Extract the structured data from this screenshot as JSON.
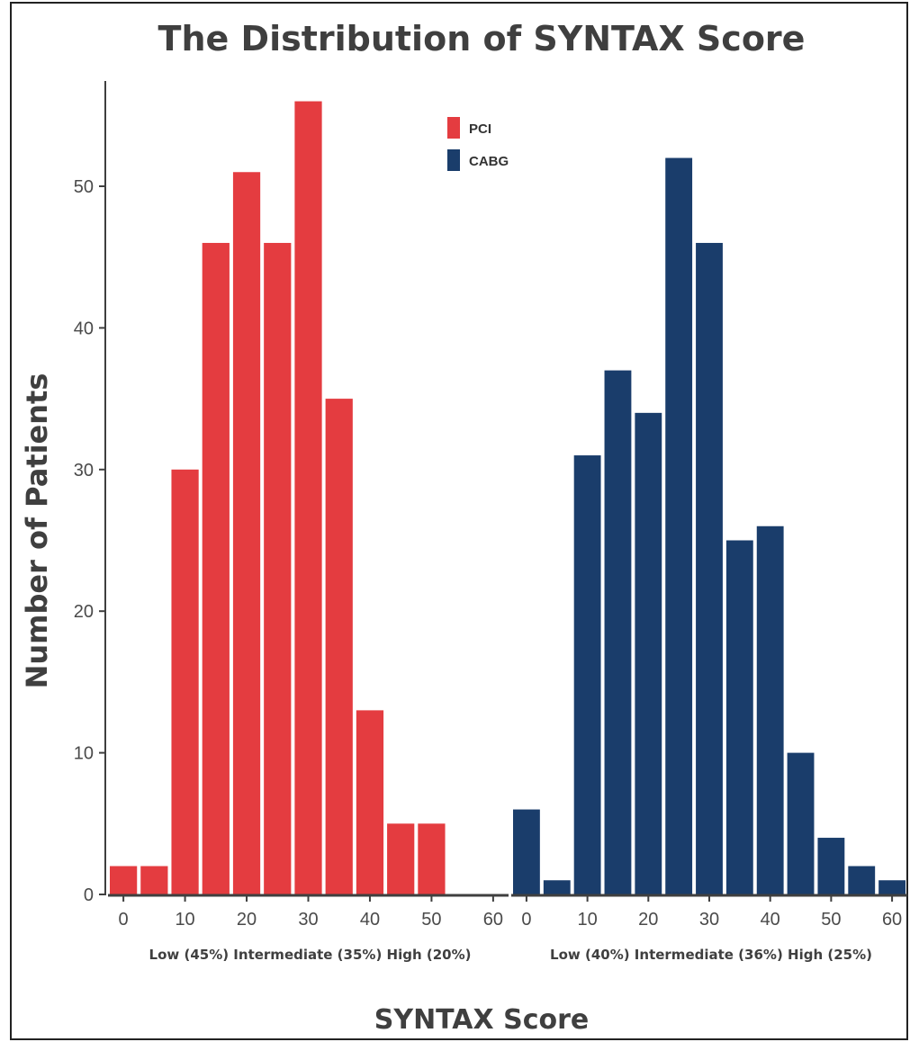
{
  "chart_data": {
    "type": "bar",
    "title": "The Distribution of SYNTAX Score",
    "xlabel": "SYNTAX Score",
    "ylabel": "Number of Patients",
    "ylim": [
      0,
      56
    ],
    "yticks": [
      0,
      10,
      20,
      30,
      40,
      50
    ],
    "xticks": [
      0,
      10,
      20,
      30,
      40,
      50,
      60
    ],
    "xlim": [
      -2.5,
      62.5
    ],
    "bin_width": 5,
    "grid": false,
    "legend_position": "top-center",
    "panels": [
      {
        "name": "PCI",
        "color": "#e43c40",
        "x": [
          0,
          5,
          10,
          15,
          20,
          25,
          30,
          35,
          40,
          45,
          50,
          55,
          60
        ],
        "values": [
          2,
          2,
          30,
          46,
          51,
          46,
          56,
          35,
          13,
          5,
          5,
          0,
          0
        ],
        "subtitle": "Low (45%) Intermediate (35%) High (20%)"
      },
      {
        "name": "CABG",
        "color": "#1a3d6b",
        "x": [
          0,
          5,
          10,
          15,
          20,
          25,
          30,
          35,
          40,
          45,
          50,
          55,
          60
        ],
        "values": [
          6,
          1,
          31,
          37,
          34,
          52,
          46,
          25,
          26,
          10,
          4,
          2,
          1
        ],
        "subtitle": "Low (40%) Intermediate (36%) High (25%)"
      }
    ]
  }
}
